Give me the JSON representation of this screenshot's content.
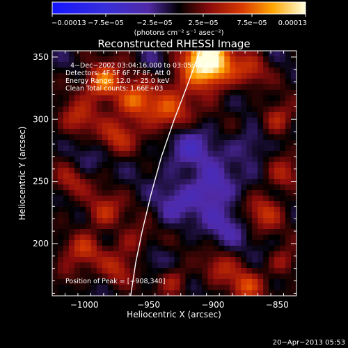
{
  "colorbar": {
    "ticks": [
      {
        "label": "−0.00013",
        "value": -0.00013
      },
      {
        "label": "−7.5e−05",
        "value": -7.5e-05
      },
      {
        "label": "−2.5e−05",
        "value": -2.5e-05
      },
      {
        "label": "2.5e−05",
        "value": 2.5e-05
      },
      {
        "label": "7.5e−05",
        "value": 7.5e-05
      },
      {
        "label": "0.00013",
        "value": 0.00013
      }
    ],
    "min": -0.00013,
    "max": 0.00013,
    "units_label": "(photons cm⁻² s⁻¹ asec⁻²)"
  },
  "chart_data": {
    "type": "heatmap",
    "title": "Reconstructed RHESSI Image",
    "xlabel": "Heliocentric X (arcsec)",
    "ylabel": "Heliocentric Y (arcsec)",
    "xlim": [
      -1025,
      -835
    ],
    "ylim": [
      158,
      355
    ],
    "x_ticks": [
      {
        "label": "−1000",
        "value": -1000
      },
      {
        "label": "−950",
        "value": -950
      },
      {
        "label": "−900",
        "value": -900
      },
      {
        "label": "−850",
        "value": -850
      }
    ],
    "y_ticks": [
      {
        "label": "200",
        "value": 200
      },
      {
        "label": "250",
        "value": 250
      },
      {
        "label": "300",
        "value": 300
      },
      {
        "label": "350",
        "value": 350
      }
    ],
    "annotations": {
      "time": "4−Dec−2002 03:04:16.000 to 03:05:44.000",
      "detectors": "Detectors: 4F 5F 6F 7F 8F, Att 0",
      "energy": "Energy Range: 12.0 − 25.0 keV",
      "clean": "Clean     Total counts: 1.66E+03",
      "peak": "Position of Peak = [−908,340]"
    },
    "peak": [
      -908,
      340
    ],
    "limb_curve": [
      [
        -910,
        355
      ],
      [
        -920,
        327
      ],
      [
        -930,
        300
      ],
      [
        -940,
        270
      ],
      [
        -948,
        240
      ],
      [
        -955,
        210
      ],
      [
        -960,
        185
      ],
      [
        -964,
        158
      ]
    ],
    "sources": [
      [
        -905,
        345,
        0.00015,
        14
      ],
      [
        -985,
        330,
        9e-05,
        10
      ],
      [
        -960,
        315,
        8e-05,
        10
      ],
      [
        -935,
        305,
        7e-05,
        12
      ],
      [
        -1005,
        300,
        5e-05,
        10
      ],
      [
        -975,
        285,
        5e-05,
        10
      ],
      [
        -1010,
        250,
        4e-05,
        10
      ],
      [
        -985,
        225,
        5e-05,
        10
      ],
      [
        -1000,
        195,
        5e-05,
        9
      ],
      [
        -960,
        200,
        4e-05,
        10
      ],
      [
        -975,
        180,
        4e-05,
        9
      ],
      [
        -1015,
        175,
        3e-05,
        8
      ],
      [
        -850,
        300,
        5e-05,
        9
      ],
      [
        -870,
        340,
        4e-05,
        9
      ],
      [
        -845,
        255,
        4e-05,
        9
      ],
      [
        -860,
        225,
        5e-05,
        10
      ],
      [
        -895,
        180,
        4e-05,
        9
      ],
      [
        -875,
        165,
        6e-05,
        9
      ],
      [
        -845,
        185,
        4e-05,
        8
      ],
      [
        -930,
        170,
        4e-05,
        8
      ],
      [
        -920,
        275,
        -4e-05,
        14
      ],
      [
        -900,
        245,
        -5e-05,
        12
      ],
      [
        -890,
        215,
        -3e-05,
        12
      ],
      [
        -930,
        230,
        -3e-05,
        12
      ],
      [
        -1000,
        265,
        -2e-05,
        10
      ],
      [
        -945,
        345,
        -2e-05,
        8
      ],
      [
        -870,
        280,
        -3e-05,
        10
      ],
      [
        -950,
        190,
        -2e-05,
        8
      ]
    ]
  },
  "footer": {
    "timestamp": "20−Apr−2013 05:53"
  }
}
